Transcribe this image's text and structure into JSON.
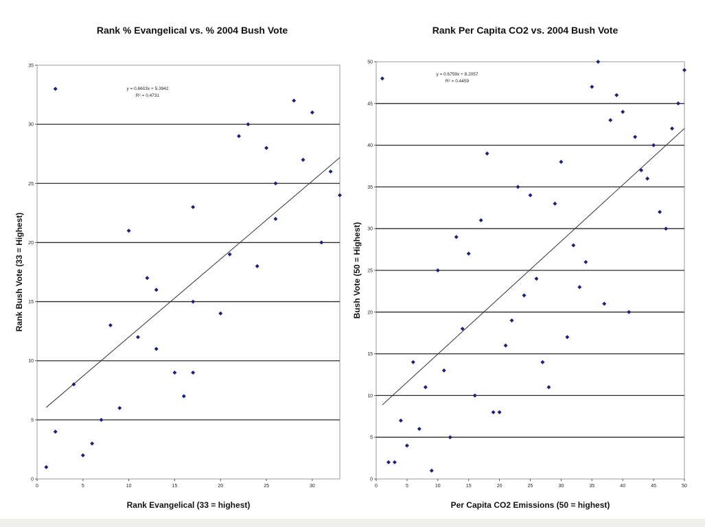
{
  "chart_data": [
    {
      "type": "scatter",
      "title": "Rank % Evangelical vs. % 2004 Bush Vote",
      "xlabel": "Rank Evangelical (33 = highest)",
      "ylabel": "Rank Bush Vote (33 = Highest)",
      "xlim": [
        0,
        33
      ],
      "ylim": [
        0,
        35
      ],
      "xticks": [
        0,
        5,
        10,
        15,
        20,
        25,
        30
      ],
      "yticks": [
        0,
        5,
        10,
        15,
        20,
        25,
        30,
        35
      ],
      "grid": "horizontal",
      "marker_color": "#1f1f7a",
      "trendline": {
        "slope": 0.6603,
        "intercept": 5.3942
      },
      "equation": "y = 0.6603x + 5.3942",
      "r2": "R² = 0.4731",
      "points": [
        [
          1,
          1
        ],
        [
          2,
          33
        ],
        [
          2,
          4
        ],
        [
          4,
          8
        ],
        [
          5,
          2
        ],
        [
          6,
          3
        ],
        [
          7,
          5
        ],
        [
          8,
          13
        ],
        [
          9,
          6
        ],
        [
          10,
          21
        ],
        [
          11,
          12
        ],
        [
          12,
          17
        ],
        [
          13,
          16
        ],
        [
          13,
          11
        ],
        [
          15,
          9
        ],
        [
          16,
          7
        ],
        [
          17,
          23
        ],
        [
          17,
          15
        ],
        [
          17,
          9
        ],
        [
          20,
          14
        ],
        [
          21,
          19
        ],
        [
          22,
          29
        ],
        [
          23,
          30
        ],
        [
          24,
          18
        ],
        [
          25,
          28
        ],
        [
          26,
          25
        ],
        [
          26,
          22
        ],
        [
          28,
          32
        ],
        [
          29,
          27
        ],
        [
          30,
          31
        ],
        [
          31,
          20
        ],
        [
          32,
          26
        ],
        [
          33,
          24
        ]
      ]
    },
    {
      "type": "scatter",
      "title": "Rank Per Capita CO2 vs. 2004 Bush Vote",
      "xlabel": "Per Capita CO2 Emissions (50 = highest)",
      "ylabel": "Bush Vote (50 = Highest)",
      "xlim": [
        0,
        50
      ],
      "ylim": [
        0,
        50
      ],
      "xticks": [
        0,
        5,
        10,
        15,
        20,
        25,
        30,
        35,
        40,
        45,
        50
      ],
      "yticks": [
        0,
        5,
        10,
        15,
        20,
        25,
        30,
        35,
        40,
        45,
        50
      ],
      "grid": "horizontal",
      "marker_color": "#1f1f7a",
      "trendline": {
        "slope": 0.6759,
        "intercept": 8.2057
      },
      "equation": "y = 0.6759x + 8.2057",
      "r2": "R² = 0.4459",
      "points": [
        [
          1,
          48
        ],
        [
          2,
          2
        ],
        [
          3,
          2
        ],
        [
          4,
          7
        ],
        [
          5,
          4
        ],
        [
          6,
          14
        ],
        [
          7,
          6
        ],
        [
          8,
          11
        ],
        [
          9,
          1
        ],
        [
          10,
          25
        ],
        [
          11,
          13
        ],
        [
          12,
          5
        ],
        [
          13,
          29
        ],
        [
          14,
          18
        ],
        [
          15,
          27
        ],
        [
          16,
          10
        ],
        [
          17,
          31
        ],
        [
          18,
          39
        ],
        [
          19,
          8
        ],
        [
          20,
          8
        ],
        [
          21,
          16
        ],
        [
          22,
          19
        ],
        [
          23,
          35
        ],
        [
          24,
          22
        ],
        [
          25,
          34
        ],
        [
          26,
          24
        ],
        [
          27,
          14
        ],
        [
          28,
          11
        ],
        [
          29,
          33
        ],
        [
          30,
          38
        ],
        [
          31,
          17
        ],
        [
          32,
          28
        ],
        [
          33,
          23
        ],
        [
          34,
          26
        ],
        [
          35,
          47
        ],
        [
          36,
          50
        ],
        [
          37,
          21
        ],
        [
          38,
          43
        ],
        [
          39,
          46
        ],
        [
          40,
          44
        ],
        [
          41,
          20
        ],
        [
          42,
          41
        ],
        [
          43,
          37
        ],
        [
          44,
          36
        ],
        [
          45,
          40
        ],
        [
          46,
          32
        ],
        [
          47,
          30
        ],
        [
          48,
          42
        ],
        [
          49,
          45
        ],
        [
          50,
          49
        ]
      ]
    }
  ]
}
